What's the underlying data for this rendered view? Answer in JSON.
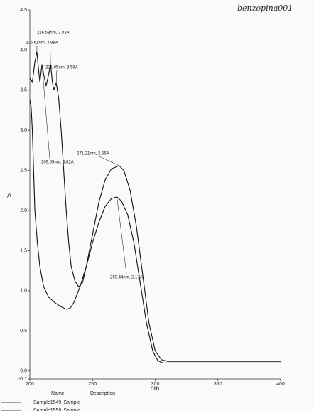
{
  "chart_data": {
    "type": "line",
    "title": "benzopina001",
    "xlabel": "nm",
    "ylabel": "A",
    "xlim": [
      200,
      400
    ],
    "ylim": [
      -0.1,
      4.5
    ],
    "xticks": [
      200,
      250,
      300,
      350,
      400
    ],
    "yticks": [
      -0.1,
      {
        "value": 0,
        "label": "0.0"
      },
      0.5,
      {
        "value": 1,
        "label": "1.0"
      },
      1.5,
      {
        "value": 2,
        "label": "2.0"
      },
      2.5,
      {
        "value": 3,
        "label": "3.0"
      },
      3.5,
      {
        "value": 4,
        "label": "4.0"
      },
      4.5
    ],
    "legend_headers": [
      "Name",
      "Description"
    ],
    "series": [
      {
        "name": "Sample1549",
        "description": "Sample",
        "color": "#111111",
        "x": [
          200,
          202,
          204,
          205.61,
          207,
          208,
          209.69,
          211,
          213,
          215,
          216.53,
          218,
          219,
          221.05,
          223,
          225,
          227,
          229,
          231,
          233,
          236,
          239,
          242,
          245,
          250,
          255,
          260,
          265,
          271.21,
          275,
          280,
          285,
          290,
          295,
          300,
          305,
          310,
          320,
          350,
          400
        ],
        "values": [
          3.65,
          3.6,
          3.85,
          3.98,
          3.75,
          3.6,
          3.82,
          3.7,
          3.55,
          3.7,
          3.82,
          3.6,
          3.5,
          3.59,
          3.4,
          3.0,
          2.5,
          2.0,
          1.6,
          1.3,
          1.12,
          1.05,
          1.1,
          1.3,
          1.7,
          2.1,
          2.38,
          2.52,
          2.56,
          2.5,
          2.25,
          1.8,
          1.2,
          0.6,
          0.25,
          0.14,
          0.12,
          0.12,
          0.12,
          0.12
        ]
      },
      {
        "name": "Sample1550",
        "description": "Sample",
        "color": "#111111",
        "x": [
          200,
          201,
          202,
          203,
          204,
          206,
          208,
          211,
          215,
          220,
          225,
          229,
          232,
          235,
          240,
          245,
          250,
          255,
          260,
          265,
          269.44,
          273,
          278,
          283,
          288,
          293,
          298,
          302,
          306,
          320,
          400
        ],
        "values": [
          3.38,
          3.3,
          3.0,
          2.5,
          2.0,
          1.6,
          1.3,
          1.05,
          0.92,
          0.85,
          0.8,
          0.77,
          0.78,
          0.85,
          1.05,
          1.3,
          1.6,
          1.85,
          2.05,
          2.15,
          2.17,
          2.12,
          1.95,
          1.6,
          1.1,
          0.6,
          0.25,
          0.13,
          0.1,
          0.1,
          0.1
        ]
      }
    ],
    "annotations": [
      {
        "text": "216.53nm, 3.82A",
        "x": 216.53,
        "y": 3.82
      },
      {
        "text": "205.61nm, 3.98A",
        "x": 205.61,
        "y": 3.98
      },
      {
        "text": "221.05nm, 3.59A",
        "x": 221.05,
        "y": 3.59
      },
      {
        "text": "209.69nm, 3.82A",
        "x": 209.69,
        "y": 3.82
      },
      {
        "text": "271.21nm, 2.56A",
        "x": 271.21,
        "y": 2.56
      },
      {
        "text": "269.44nm, 2.17A",
        "x": 269.44,
        "y": 2.17
      }
    ]
  }
}
